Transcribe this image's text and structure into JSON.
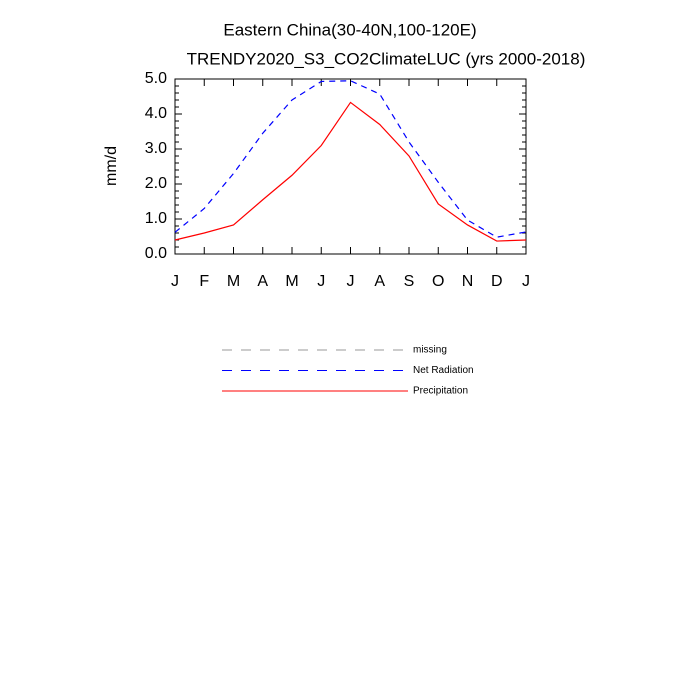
{
  "chart_data": {
    "type": "line",
    "title": "Eastern China(30-40N,100-120E)",
    "subtitle": "TRENDY2020_S3_CO2ClimateLUC (yrs 2000-2018)",
    "y_label": "mm/d",
    "categories": [
      "J",
      "F",
      "M",
      "A",
      "M",
      "J",
      "J",
      "A",
      "S",
      "O",
      "N",
      "D",
      "J"
    ],
    "series": [
      {
        "name": "missing",
        "color": "#999999",
        "dashed": true,
        "values": [
          null,
          null,
          null,
          null,
          null,
          null,
          null,
          null,
          null,
          null,
          null,
          null,
          null
        ]
      },
      {
        "name": "Net Radiation",
        "color": "#0000ff",
        "dashed": true,
        "values": [
          0.62,
          1.3,
          2.3,
          3.45,
          4.4,
          4.93,
          4.95,
          4.57,
          3.2,
          2.05,
          0.97,
          0.48,
          0.63
        ]
      },
      {
        "name": "Precipitation",
        "color": "#ff0000",
        "dashed": false,
        "values": [
          0.4,
          0.6,
          0.83,
          1.55,
          2.25,
          3.1,
          4.33,
          3.7,
          2.8,
          1.43,
          0.83,
          0.37,
          0.4
        ]
      }
    ],
    "ylim": [
      0,
      5
    ],
    "yticks": [
      {
        "value": 0,
        "label": "0.0"
      },
      {
        "value": 1,
        "label": "1.0"
      },
      {
        "value": 2,
        "label": "2.0"
      },
      {
        "value": 3,
        "label": "3.0"
      },
      {
        "value": 4,
        "label": "4.0"
      },
      {
        "value": 5,
        "label": "5.0"
      }
    ],
    "grid": false
  }
}
